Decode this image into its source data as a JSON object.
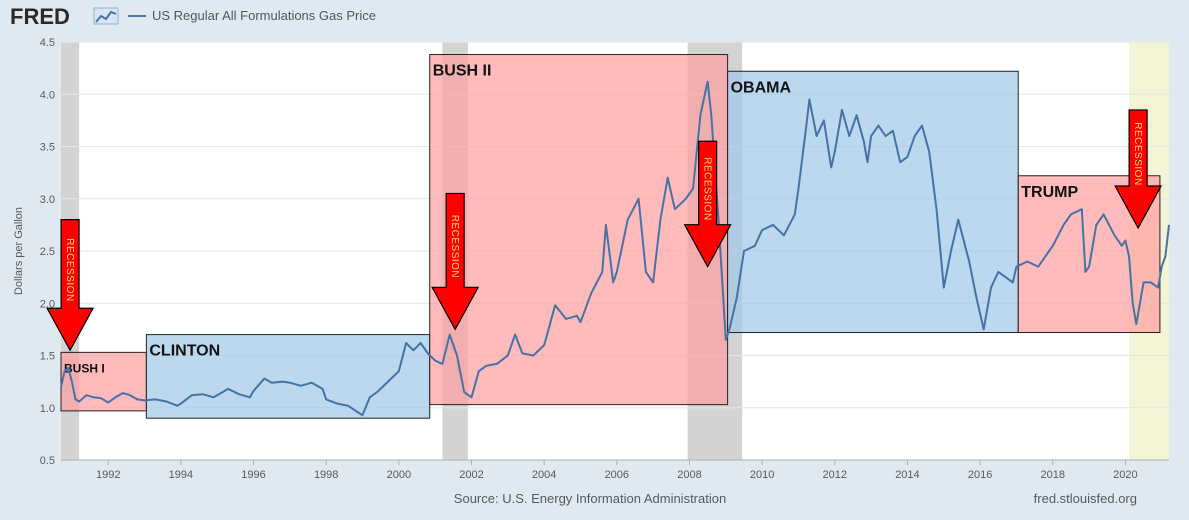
{
  "header": {
    "logo_text": "FRED",
    "series_label": "US Regular All Formulations Gas Price"
  },
  "footer": {
    "source": "Source: U.S. Energy Information Administration",
    "site": "fred.stlouisfed.org"
  },
  "colors": {
    "line": "#4572a7",
    "republican": "#ff9e9e",
    "democrat": "#9fc7e8",
    "recession": "#d3d3d3",
    "covid": "#f3f3d6",
    "arrow": "#ff0000"
  },
  "chart_data": {
    "type": "line",
    "title": "US Regular All Formulations Gas Price",
    "ylabel": "Dollars per Gallon",
    "xlabel": "",
    "xlim": [
      1990.7,
      2021.2
    ],
    "ylim": [
      0.5,
      4.5
    ],
    "x_ticks": [
      "1992",
      "1994",
      "1996",
      "1998",
      "2000",
      "2002",
      "2004",
      "2006",
      "2008",
      "2010",
      "2012",
      "2014",
      "2016",
      "2018",
      "2020"
    ],
    "y_ticks": [
      "0.5",
      "1.0",
      "1.5",
      "2.0",
      "2.5",
      "3.0",
      "3.5",
      "4.0",
      "4.5"
    ],
    "recessions": [
      {
        "start": 1990.6,
        "end": 1991.2
      },
      {
        "start": 2001.2,
        "end": 2001.9
      },
      {
        "start": 2007.95,
        "end": 2009.45
      },
      {
        "start": 2020.1,
        "end": 2021.2
      }
    ],
    "presidencies": [
      {
        "label": "BUSH I",
        "start": 1990.7,
        "end": 1993.05,
        "y_low": 0.97,
        "y_high": 1.53,
        "party": "republican"
      },
      {
        "label": "CLINTON",
        "start": 1993.05,
        "end": 2000.85,
        "y_low": 0.9,
        "y_high": 1.7,
        "party": "democrat"
      },
      {
        "label": "BUSH II",
        "start": 2000.85,
        "end": 2009.05,
        "y_low": 1.03,
        "y_high": 4.38,
        "party": "republican"
      },
      {
        "label": "OBAMA",
        "start": 2009.05,
        "end": 2017.05,
        "y_low": 1.72,
        "y_high": 4.22,
        "party": "democrat"
      },
      {
        "label": "TRUMP",
        "start": 2017.05,
        "end": 2020.95,
        "y_low": 1.72,
        "y_high": 3.22,
        "party": "republican"
      }
    ],
    "annotations": [
      {
        "text": "RECESSION",
        "x": 1990.95,
        "arrow_top": 2.8,
        "arrow_bottom": 1.55
      },
      {
        "text": "RECESSION",
        "x": 2001.55,
        "arrow_top": 3.05,
        "arrow_bottom": 1.75
      },
      {
        "text": "RECESSION",
        "x": 2008.5,
        "arrow_top": 3.55,
        "arrow_bottom": 2.35
      },
      {
        "text": "RECESSION",
        "x": 2020.35,
        "arrow_top": 3.85,
        "arrow_bottom": 2.72
      }
    ],
    "series": [
      {
        "x": [
          1990.7,
          1990.8,
          1990.9,
          1991.0,
          1991.1,
          1991.2,
          1991.4,
          1991.6,
          1991.8,
          1992.0,
          1992.2,
          1992.4,
          1992.6,
          1992.8,
          1993.0,
          1993.3,
          1993.6,
          1993.9,
          1994.0,
          1994.3,
          1994.6,
          1994.9,
          1995.0,
          1995.3,
          1995.6,
          1995.9,
          1996.0,
          1996.3,
          1996.5,
          1996.8,
          1997.0,
          1997.3,
          1997.6,
          1997.9,
          1998.0,
          1998.3,
          1998.6,
          1998.9,
          1999.0,
          1999.2,
          1999.4,
          1999.7,
          2000.0,
          2000.2,
          2000.4,
          2000.6,
          2000.8,
          2001.0,
          2001.2,
          2001.4,
          2001.6,
          2001.8,
          2002.0,
          2002.2,
          2002.4,
          2002.7,
          2003.0,
          2003.2,
          2003.4,
          2003.7,
          2004.0,
          2004.3,
          2004.6,
          2004.9,
          2005.0,
          2005.3,
          2005.6,
          2005.7,
          2005.9,
          2006.0,
          2006.3,
          2006.6,
          2006.8,
          2007.0,
          2007.2,
          2007.4,
          2007.6,
          2007.9,
          2008.1,
          2008.3,
          2008.5,
          2008.6,
          2008.8,
          2009.0,
          2009.1,
          2009.3,
          2009.5,
          2009.8,
          2010.0,
          2010.3,
          2010.6,
          2010.9,
          2011.0,
          2011.2,
          2011.3,
          2011.5,
          2011.7,
          2011.9,
          2012.0,
          2012.2,
          2012.4,
          2012.6,
          2012.8,
          2012.9,
          2013.0,
          2013.2,
          2013.4,
          2013.6,
          2013.8,
          2014.0,
          2014.2,
          2014.4,
          2014.6,
          2014.8,
          2015.0,
          2015.2,
          2015.4,
          2015.7,
          2015.9,
          2016.1,
          2016.3,
          2016.5,
          2016.7,
          2016.9,
          2017.0,
          2017.3,
          2017.6,
          2017.9,
          2018.0,
          2018.3,
          2018.5,
          2018.8,
          2018.9,
          2019.0,
          2019.2,
          2019.4,
          2019.7,
          2019.9,
          2020.0,
          2020.1,
          2020.2,
          2020.3,
          2020.5,
          2020.7,
          2020.9,
          2021.0,
          2021.1,
          2021.2
        ],
        "values": [
          1.2,
          1.35,
          1.38,
          1.25,
          1.08,
          1.06,
          1.12,
          1.1,
          1.09,
          1.05,
          1.1,
          1.14,
          1.12,
          1.08,
          1.07,
          1.08,
          1.06,
          1.02,
          1.04,
          1.12,
          1.13,
          1.1,
          1.12,
          1.18,
          1.13,
          1.1,
          1.16,
          1.28,
          1.24,
          1.25,
          1.24,
          1.21,
          1.24,
          1.18,
          1.08,
          1.04,
          1.02,
          0.95,
          0.93,
          1.1,
          1.15,
          1.25,
          1.35,
          1.62,
          1.55,
          1.62,
          1.52,
          1.45,
          1.42,
          1.7,
          1.5,
          1.15,
          1.1,
          1.35,
          1.4,
          1.42,
          1.5,
          1.7,
          1.52,
          1.5,
          1.6,
          1.98,
          1.85,
          1.88,
          1.82,
          2.1,
          2.3,
          2.75,
          2.2,
          2.3,
          2.8,
          3.0,
          2.3,
          2.2,
          2.8,
          3.2,
          2.9,
          3.0,
          3.1,
          3.8,
          4.12,
          3.8,
          2.8,
          1.65,
          1.75,
          2.05,
          2.5,
          2.55,
          2.7,
          2.75,
          2.65,
          2.85,
          3.1,
          3.65,
          3.95,
          3.6,
          3.75,
          3.3,
          3.45,
          3.85,
          3.6,
          3.8,
          3.55,
          3.35,
          3.6,
          3.7,
          3.6,
          3.65,
          3.35,
          3.4,
          3.6,
          3.7,
          3.45,
          2.9,
          2.15,
          2.5,
          2.8,
          2.4,
          2.05,
          1.75,
          2.15,
          2.3,
          2.25,
          2.2,
          2.35,
          2.4,
          2.35,
          2.5,
          2.55,
          2.75,
          2.85,
          2.9,
          2.3,
          2.35,
          2.75,
          2.85,
          2.65,
          2.55,
          2.6,
          2.45,
          2.0,
          1.8,
          2.2,
          2.2,
          2.15,
          2.35,
          2.45,
          2.75
        ]
      }
    ]
  }
}
